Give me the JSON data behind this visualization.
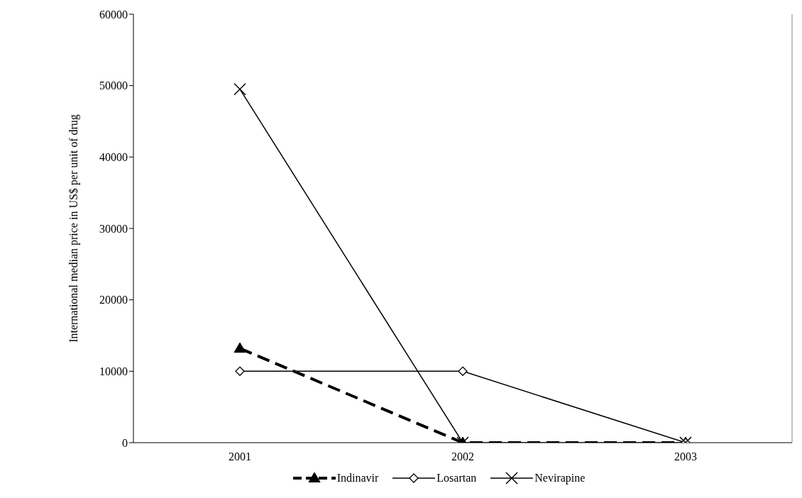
{
  "chart_data": {
    "type": "line",
    "ylabel": "International median price in US$ per unit of drug",
    "categories": [
      "2001",
      "2002",
      "2003"
    ],
    "series": [
      {
        "name": "Indinavir",
        "color": "#000000",
        "values": [
          13200,
          0,
          0
        ],
        "marker": "triangle",
        "line_style": "dashed"
      },
      {
        "name": "Losartan",
        "color": "#000000",
        "values": [
          10000,
          10000,
          0
        ],
        "marker": "diamond",
        "line_style": "solid"
      },
      {
        "name": "Nevirapine",
        "color": "#000000",
        "values": [
          49500,
          0,
          0
        ],
        "marker": "cross",
        "line_style": "solid"
      }
    ],
    "ylim": [
      0,
      60000
    ],
    "yticks": [
      0,
      10000,
      20000,
      30000,
      40000,
      50000,
      60000
    ],
    "grid": false,
    "legend": "bottom"
  }
}
